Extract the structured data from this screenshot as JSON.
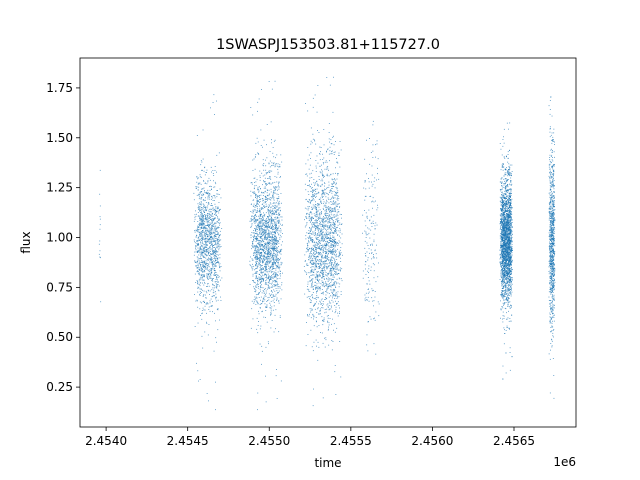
{
  "chart_data": {
    "type": "scatter",
    "title": "1SWASPJ153503.81+115727.0",
    "xlabel": "time",
    "ylabel": "flux",
    "x_offset_label": "1e6",
    "xlim": [
      2453840,
      2456880
    ],
    "ylim": [
      0.05,
      1.9
    ],
    "xticks": [
      2454000,
      2454500,
      2455000,
      2455500,
      2456000,
      2456500
    ],
    "xtick_labels": [
      "2.4540",
      "2.4545",
      "2.4550",
      "2.4555",
      "2.4560",
      "2.4565"
    ],
    "yticks": [
      0.25,
      0.5,
      0.75,
      1.0,
      1.25,
      1.5,
      1.75
    ],
    "ytick_labels": [
      "0.25",
      "0.50",
      "0.75",
      "1.00",
      "1.25",
      "1.50",
      "1.75"
    ],
    "grid": false,
    "marker_color": "#1f77b4",
    "clusters": [
      {
        "x_center": 2453960,
        "x_width": 8,
        "n": 14,
        "y_center": 1.1,
        "y_spread": 0.25,
        "y_min": 0.68,
        "y_max": 1.57
      },
      {
        "x_center": 2454620,
        "x_width": 110,
        "n": 1300,
        "y_center": 0.98,
        "y_spread": 0.16,
        "y_min": 0.11,
        "y_max": 1.8
      },
      {
        "x_center": 2454980,
        "x_width": 130,
        "n": 1800,
        "y_center": 0.98,
        "y_spread": 0.17,
        "y_min": 0.11,
        "y_max": 1.79
      },
      {
        "x_center": 2455330,
        "x_width": 150,
        "n": 1800,
        "y_center": 0.97,
        "y_spread": 0.2,
        "y_min": 0.13,
        "y_max": 1.81
      },
      {
        "x_center": 2455620,
        "x_width": 70,
        "n": 180,
        "y_center": 0.98,
        "y_spread": 0.22,
        "y_min": 0.2,
        "y_max": 1.78
      },
      {
        "x_center": 2456450,
        "x_width": 50,
        "n": 2600,
        "y_center": 0.98,
        "y_spread": 0.15,
        "y_min": 0.27,
        "y_max": 1.58
      },
      {
        "x_center": 2456730,
        "x_width": 24,
        "n": 900,
        "y_center": 0.98,
        "y_spread": 0.22,
        "y_min": 0.11,
        "y_max": 1.8
      }
    ]
  }
}
